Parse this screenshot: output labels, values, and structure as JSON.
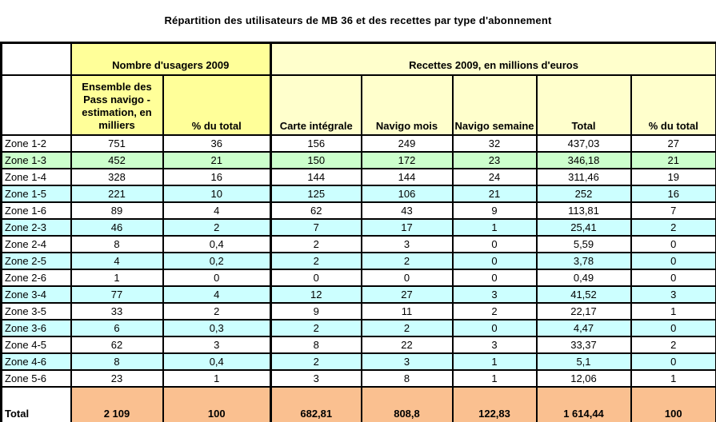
{
  "title": "Répartition des utilisateurs de MB 36 et des recettes par type d'abonnement",
  "colors": {
    "header_yellow": "#FFFF99",
    "header_pale_yellow": "#FFFFCC",
    "row_green": "#CCFFCC",
    "row_cyan": "#CCFFFF",
    "total_orange": "#FAC090",
    "border": "#000000"
  },
  "table": {
    "group_headers": {
      "usagers": "Nombre d'usagers 2009",
      "recettes": "Recettes 2009, en millions d'euros"
    },
    "column_headers": {
      "pass_navigo": "Ensemble des Pass navigo - estimation, en milliers",
      "pct_usagers": "% du total",
      "carte_integrale": "Carte intégrale",
      "navigo_mois": "Navigo mois",
      "navigo_semaine": "Navigo semaine",
      "total": "Total",
      "pct_recettes": "% du total"
    },
    "rows": [
      {
        "zone": "Zone 1-2",
        "bg": "white",
        "values": [
          "751",
          "36",
          "156",
          "249",
          "32",
          "437,03",
          "27"
        ]
      },
      {
        "zone": "Zone 1-3",
        "bg": "green",
        "values": [
          "452",
          "21",
          "150",
          "172",
          "23",
          "346,18",
          "21"
        ]
      },
      {
        "zone": "Zone 1-4",
        "bg": "white",
        "values": [
          "328",
          "16",
          "144",
          "144",
          "24",
          "311,46",
          "19"
        ]
      },
      {
        "zone": "Zone 1-5",
        "bg": "cyan",
        "values": [
          "221",
          "10",
          "125",
          "106",
          "21",
          "252",
          "16"
        ]
      },
      {
        "zone": "Zone 1-6",
        "bg": "white",
        "values": [
          "89",
          "4",
          "62",
          "43",
          "9",
          "113,81",
          "7"
        ]
      },
      {
        "zone": "Zone 2-3",
        "bg": "cyan",
        "values": [
          "46",
          "2",
          "7",
          "17",
          "1",
          "25,41",
          "2"
        ]
      },
      {
        "zone": "Zone 2-4",
        "bg": "white",
        "values": [
          "8",
          "0,4",
          "2",
          "3",
          "0",
          "5,59",
          "0"
        ]
      },
      {
        "zone": "Zone 2-5",
        "bg": "cyan",
        "values": [
          "4",
          "0,2",
          "2",
          "2",
          "0",
          "3,78",
          "0"
        ]
      },
      {
        "zone": "Zone 2-6",
        "bg": "white",
        "values": [
          "1",
          "0",
          "0",
          "0",
          "0",
          "0,49",
          "0"
        ]
      },
      {
        "zone": "Zone 3-4",
        "bg": "cyan",
        "values": [
          "77",
          "4",
          "12",
          "27",
          "3",
          "41,52",
          "3"
        ]
      },
      {
        "zone": "Zone 3-5",
        "bg": "white",
        "values": [
          "33",
          "2",
          "9",
          "11",
          "2",
          "22,17",
          "1"
        ]
      },
      {
        "zone": "Zone 3-6",
        "bg": "cyan",
        "values": [
          "6",
          "0,3",
          "2",
          "2",
          "0",
          "4,47",
          "0"
        ]
      },
      {
        "zone": "Zone 4-5",
        "bg": "white",
        "values": [
          "62",
          "3",
          "8",
          "22",
          "3",
          "33,37",
          "2"
        ]
      },
      {
        "zone": "Zone 4-6",
        "bg": "cyan",
        "values": [
          "8",
          "0,4",
          "2",
          "3",
          "1",
          "5,1",
          "0"
        ]
      },
      {
        "zone": "Zone 5-6",
        "bg": "white",
        "values": [
          "23",
          "1",
          "3",
          "8",
          "1",
          "12,06",
          "1"
        ]
      }
    ],
    "total_row": {
      "label": "Total",
      "values": [
        "2 109",
        "100",
        "682,81",
        "808,8",
        "122,83",
        "1 614,44",
        "100"
      ]
    }
  }
}
